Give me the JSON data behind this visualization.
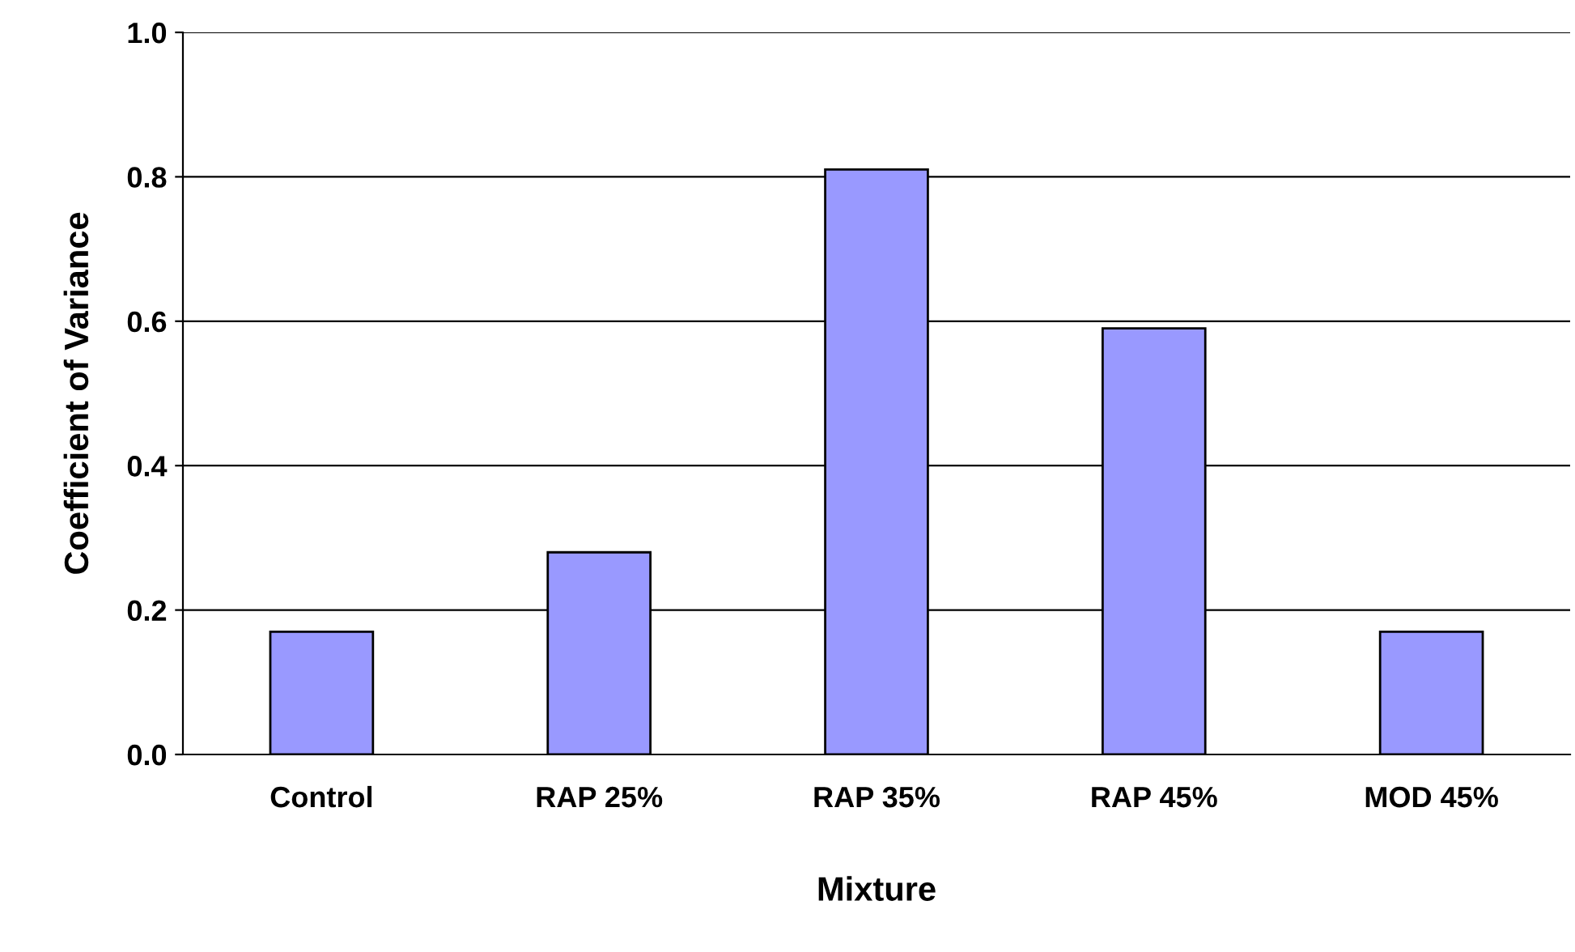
{
  "chart_data": {
    "type": "bar",
    "xlabel": "Mixture",
    "ylabel": "Coefficient of Variance",
    "categories": [
      "Control",
      "RAP 25%",
      "RAP 35%",
      "RAP 45%",
      "MOD 45%"
    ],
    "values": [
      0.17,
      0.28,
      0.81,
      0.59,
      0.17
    ],
    "color": "#9999ff",
    "ylim": [
      0,
      1.0
    ],
    "yticks": [
      {
        "value": 0,
        "label": "0.0"
      },
      {
        "value": 0.2,
        "label": "0.2"
      },
      {
        "value": 0.4,
        "label": "0.4"
      },
      {
        "value": 0.6,
        "label": "0.6"
      },
      {
        "value": 0.8,
        "label": "0.8"
      },
      {
        "value": 1.0,
        "label": "1.0"
      }
    ],
    "grid": "y",
    "legend": false
  }
}
